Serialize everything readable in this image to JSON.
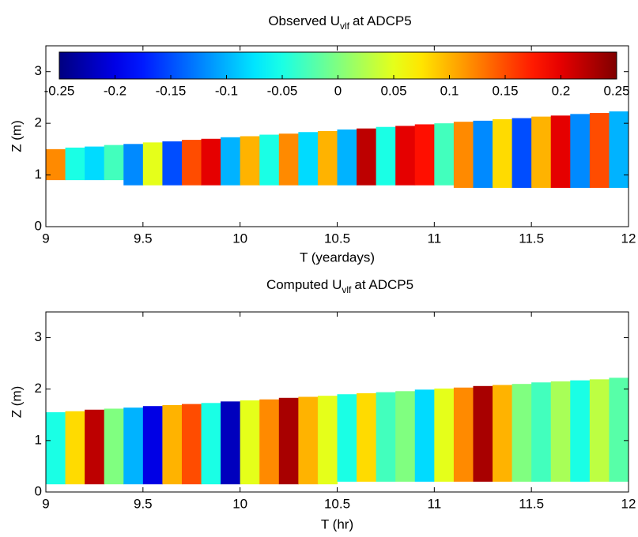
{
  "chart_data": [
    {
      "type": "heatmap",
      "title": [
        "Observed U",
        "vlf",
        "at ADCP5"
      ],
      "xlabel": "T (yeardays)",
      "ylabel": "Z (m)",
      "xlim": [
        9,
        12
      ],
      "xticks": [
        9,
        9.5,
        10,
        10.5,
        11,
        11.5,
        12
      ],
      "ylim": [
        0,
        3.5
      ],
      "yticks": [
        0,
        1,
        2,
        3
      ],
      "colormap": "jet",
      "clim": [
        -0.25,
        0.25
      ],
      "colorbar": true,
      "cticks": [
        -0.25,
        -0.2,
        -0.15,
        -0.1,
        -0.05,
        0,
        0.05,
        0.1,
        0.15,
        0.2,
        0.25
      ],
      "x": [
        9.0,
        9.1,
        9.2,
        9.3,
        9.4,
        9.5,
        9.6,
        9.7,
        9.8,
        9.9,
        10.0,
        10.1,
        10.2,
        10.3,
        10.4,
        10.5,
        10.6,
        10.7,
        10.8,
        10.9,
        11.0,
        11.1,
        11.2,
        11.3,
        11.4,
        11.5,
        11.6,
        11.7,
        11.8,
        11.9
      ],
      "values": [
        0.12,
        -0.05,
        -0.08,
        -0.03,
        -0.12,
        0.05,
        -0.15,
        0.15,
        0.2,
        -0.1,
        0.1,
        -0.05,
        0.12,
        -0.08,
        0.1,
        -0.1,
        0.22,
        -0.05,
        0.2,
        0.18,
        -0.03,
        0.12,
        -0.12,
        0.08,
        -0.15,
        0.1,
        0.2,
        -0.12,
        0.15,
        -0.1
      ],
      "z_bottom": [
        0.9,
        0.9,
        0.9,
        0.9,
        0.8,
        0.8,
        0.8,
        0.8,
        0.8,
        0.8,
        0.8,
        0.8,
        0.8,
        0.8,
        0.8,
        0.8,
        0.8,
        0.8,
        0.8,
        0.8,
        0.8,
        0.75,
        0.75,
        0.75,
        0.75,
        0.75,
        0.75,
        0.75,
        0.75,
        0.75
      ],
      "z_top": [
        1.5,
        1.53,
        1.55,
        1.58,
        1.6,
        1.63,
        1.65,
        1.68,
        1.7,
        1.73,
        1.75,
        1.78,
        1.8,
        1.83,
        1.85,
        1.88,
        1.9,
        1.93,
        1.95,
        1.98,
        2.0,
        2.03,
        2.05,
        2.08,
        2.1,
        2.13,
        2.15,
        2.18,
        2.2,
        2.23
      ]
    },
    {
      "type": "heatmap",
      "title": [
        "Computed U",
        "vlf",
        "at ADCP5"
      ],
      "xlabel": "T (hr)",
      "ylabel": "Z (m)",
      "xlim": [
        9,
        12
      ],
      "xticks": [
        9,
        9.5,
        10,
        10.5,
        11,
        11.5,
        12
      ],
      "ylim": [
        0,
        3.5
      ],
      "yticks": [
        0,
        1,
        2,
        3
      ],
      "colormap": "jet",
      "clim": [
        -0.25,
        0.25
      ],
      "colorbar": false,
      "x": [
        9.0,
        9.1,
        9.2,
        9.3,
        9.4,
        9.5,
        9.6,
        9.7,
        9.8,
        9.9,
        10.0,
        10.1,
        10.2,
        10.3,
        10.4,
        10.5,
        10.6,
        10.7,
        10.8,
        10.9,
        11.0,
        11.1,
        11.2,
        11.3,
        11.4,
        11.5,
        11.6,
        11.7,
        11.8,
        11.9
      ],
      "values": [
        -0.05,
        0.08,
        0.22,
        0.0,
        -0.1,
        -0.2,
        0.1,
        0.15,
        -0.05,
        -0.22,
        0.05,
        0.12,
        0.23,
        0.1,
        0.05,
        -0.05,
        0.08,
        -0.03,
        0.0,
        -0.08,
        0.05,
        0.12,
        0.23,
        0.1,
        0.0,
        -0.03,
        0.02,
        -0.05,
        0.03,
        -0.02
      ],
      "z_bottom": [
        0.15,
        0.15,
        0.15,
        0.15,
        0.15,
        0.15,
        0.15,
        0.15,
        0.15,
        0.15,
        0.15,
        0.15,
        0.15,
        0.15,
        0.15,
        0.2,
        0.2,
        0.2,
        0.2,
        0.2,
        0.2,
        0.2,
        0.2,
        0.2,
        0.2,
        0.2,
        0.2,
        0.2,
        0.2,
        0.2
      ],
      "z_top": [
        1.55,
        1.57,
        1.6,
        1.62,
        1.64,
        1.67,
        1.69,
        1.71,
        1.73,
        1.76,
        1.78,
        1.8,
        1.83,
        1.85,
        1.87,
        1.9,
        1.92,
        1.94,
        1.96,
        1.99,
        2.01,
        2.03,
        2.06,
        2.08,
        2.1,
        2.13,
        2.15,
        2.17,
        2.19,
        2.22
      ]
    }
  ]
}
